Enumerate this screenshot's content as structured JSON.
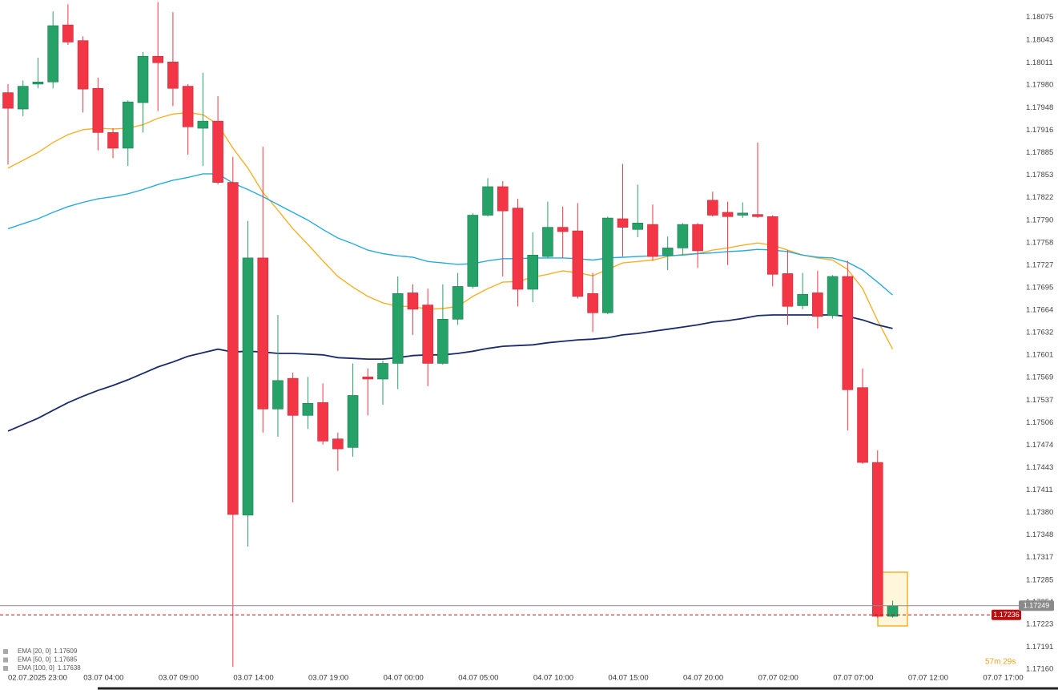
{
  "chart_data": {
    "type": "candlestick",
    "categories": [
      null,
      "02.07.2025 23:00",
      null,
      null,
      null,
      null,
      "03.07 04:00",
      null,
      null,
      null,
      null,
      "03.07 09:00",
      null,
      null,
      null,
      null,
      "03.07 14:00",
      null,
      null,
      null,
      null,
      "03.07 19:00",
      null,
      null,
      null,
      null,
      "04.07 00:00",
      null,
      null,
      null,
      null,
      "04.07 05:00",
      null,
      null,
      null,
      null,
      "04.07 10:00",
      null,
      null,
      null,
      null,
      "04.07 15:00",
      null,
      null,
      null,
      null,
      "04.07 20:00",
      null,
      null,
      null,
      null,
      "07.07 02:00",
      null,
      null,
      null,
      null,
      "07.07 07:00",
      null,
      null,
      null,
      null,
      "07.07 12:00",
      null,
      null,
      null,
      null,
      "07.07 17:00"
    ],
    "open": [
      1.17969,
      1.17946,
      1.17981,
      1.17984,
      1.18064,
      1.18042,
      1.17975,
      1.17913,
      1.17891,
      1.17955,
      1.1802,
      1.18012,
      1.17978,
      1.17919,
      1.17929,
      1.17843,
      1.17376,
      1.17737,
      1.17525,
      1.17568,
      1.17516,
      1.17534,
      1.17483,
      1.17471,
      1.1757,
      1.17567,
      1.17589,
      1.17688,
      1.17671,
      1.17589,
      1.17651,
      1.17697,
      1.17797,
      1.17837,
      1.17807,
      1.17693,
      1.17739,
      1.1778,
      1.17775,
      1.17687,
      1.1766,
      1.17792,
      1.17777,
      1.17784,
      1.17741,
      1.17751,
      1.17784,
      1.17818,
      1.17801,
      1.17797,
      1.17798,
      1.17795,
      1.17715,
      1.1767,
      1.17688,
      1.17656,
      1.17711,
      1.17555,
      1.1745,
      1.17234,
      null,
      null,
      null,
      null,
      null,
      null,
      null
    ],
    "high": [
      1.17981,
      1.17986,
      1.18018,
      1.18083,
      1.18093,
      1.18048,
      1.1799,
      1.17919,
      1.17958,
      1.18026,
      1.18096,
      1.18082,
      1.17981,
      1.17997,
      1.17964,
      1.17879,
      1.17789,
      1.17893,
      1.17657,
      1.17576,
      1.1757,
      1.17561,
      1.17492,
      1.17589,
      1.17582,
      1.17593,
      1.17711,
      1.177,
      1.17694,
      1.177,
      1.17716,
      1.178,
      1.17849,
      1.17845,
      1.1782,
      1.17773,
      1.17816,
      1.17809,
      1.17814,
      1.17716,
      1.17795,
      1.17869,
      1.1784,
      1.17812,
      1.17767,
      1.17786,
      1.17786,
      1.1783,
      1.17816,
      1.17815,
      1.17899,
      1.17797,
      1.17748,
      1.17716,
      1.17719,
      1.17713,
      1.17733,
      1.17582,
      1.17467,
      1.17256,
      null,
      null,
      null,
      null,
      null,
      null,
      null
    ],
    "low": [
      1.17868,
      1.17936,
      1.17975,
      1.17975,
      1.18036,
      1.17941,
      1.17888,
      1.17877,
      1.17866,
      1.17913,
      1.17943,
      1.1795,
      1.17882,
      1.17866,
      1.1784,
      1.17163,
      1.17332,
      1.17492,
      1.17486,
      1.17394,
      1.17497,
      1.17475,
      1.17438,
      1.17458,
      1.17516,
      1.17531,
      1.17553,
      1.17629,
      1.17557,
      1.17587,
      1.17643,
      1.17694,
      1.17795,
      1.17711,
      1.17669,
      1.17675,
      1.17737,
      1.17737,
      1.1768,
      1.17633,
      1.17658,
      1.17739,
      1.17766,
      1.17733,
      1.1772,
      1.17741,
      1.17723,
      1.17795,
      1.17727,
      1.17793,
      1.17793,
      1.17697,
      1.17643,
      1.17665,
      1.17638,
      1.17652,
      1.17495,
      1.17448,
      1.17232,
      1.17232,
      null,
      null,
      null,
      null,
      null,
      null,
      null
    ],
    "close": [
      1.17947,
      1.17978,
      1.17984,
      1.18063,
      1.1804,
      1.17974,
      1.17913,
      1.17891,
      1.17956,
      1.1802,
      1.18011,
      1.17975,
      1.17921,
      1.17929,
      1.17843,
      1.17377,
      1.17737,
      1.17525,
      1.17565,
      1.17516,
      1.17533,
      1.1748,
      1.17469,
      1.17544,
      1.17567,
      1.17589,
      1.17687,
      1.17665,
      1.17589,
      1.17651,
      1.17697,
      1.17797,
      1.17837,
      1.17803,
      1.17693,
      1.17741,
      1.1778,
      1.17774,
      1.17683,
      1.1766,
      1.17793,
      1.1778,
      1.17786,
      1.17739,
      1.17751,
      1.17784,
      1.17747,
      1.17797,
      1.17795,
      1.178,
      1.17795,
      1.17714,
      1.17669,
      1.17686,
      1.17655,
      1.17711,
      1.17552,
      1.1745,
      1.17234,
      1.17249,
      null,
      null,
      null,
      null,
      null,
      null,
      null
    ],
    "up_color": "#26a269",
    "down_color": "#f23645",
    "series": [
      {
        "name": "EMA [20, 0]",
        "color": "#f6b026",
        "values": [
          1.17863,
          1.17874,
          1.17885,
          1.17899,
          1.1791,
          1.17917,
          1.17919,
          1.17918,
          1.17919,
          1.17924,
          1.17933,
          1.17939,
          1.17941,
          1.17938,
          1.17924,
          1.17891,
          1.17863,
          1.17829,
          1.17804,
          1.17778,
          1.17756,
          1.17733,
          1.17711,
          1.17696,
          1.17683,
          1.17674,
          1.17669,
          1.17669,
          1.17665,
          1.17666,
          1.17669,
          1.17683,
          1.17694,
          1.17703,
          1.17704,
          1.1771,
          1.17714,
          1.17719,
          1.17716,
          1.17712,
          1.17721,
          1.1773,
          1.17732,
          1.17734,
          1.17739,
          1.17742,
          1.17743,
          1.17748,
          1.17751,
          1.17755,
          1.17758,
          1.17755,
          1.17748,
          1.17741,
          1.17737,
          1.17734,
          1.17721,
          1.17694,
          1.17649,
          1.17609,
          null,
          null,
          null,
          null,
          null,
          null,
          null
        ]
      },
      {
        "name": "EMA [50, 0]",
        "color": "#27aae1",
        "values": [
          1.17778,
          1.17785,
          1.17792,
          1.17801,
          1.17809,
          1.17815,
          1.1782,
          1.17823,
          1.17827,
          1.17833,
          1.1784,
          1.17846,
          1.1785,
          1.17855,
          1.17855,
          1.17842,
          1.17833,
          1.17823,
          1.17812,
          1.17801,
          1.1779,
          1.17777,
          1.17765,
          1.17757,
          1.17748,
          1.17743,
          1.1774,
          1.17738,
          1.17732,
          1.1773,
          1.17728,
          1.17729,
          1.17733,
          1.17736,
          1.17736,
          1.17737,
          1.17737,
          1.17737,
          1.17736,
          1.17734,
          1.17737,
          1.17738,
          1.17739,
          1.1774,
          1.1774,
          1.17741,
          1.17743,
          1.17744,
          1.17746,
          1.17747,
          1.17749,
          1.17748,
          1.17746,
          1.17741,
          1.17738,
          1.17737,
          1.17731,
          1.1772,
          1.17703,
          1.17685,
          null,
          null,
          null,
          null,
          null,
          null,
          null
        ]
      },
      {
        "name": "EMA [100, 0]",
        "color": "#1b2a6b",
        "values": [
          1.17494,
          1.17503,
          1.17512,
          1.17523,
          1.17534,
          1.17543,
          1.17551,
          1.17558,
          1.17566,
          1.17575,
          1.17584,
          1.17591,
          1.17599,
          1.17604,
          1.17609,
          1.17605,
          1.17606,
          1.17605,
          1.17603,
          1.17603,
          1.17602,
          1.17601,
          1.17597,
          1.17596,
          1.17595,
          1.17595,
          1.17597,
          1.176,
          1.17601,
          1.17601,
          1.17603,
          1.17606,
          1.1761,
          1.17613,
          1.17614,
          1.17615,
          1.17618,
          1.1762,
          1.17622,
          1.17623,
          1.17625,
          1.17629,
          1.17631,
          1.17634,
          1.17637,
          1.1764,
          1.17643,
          1.17647,
          1.17649,
          1.17652,
          1.17656,
          1.17657,
          1.17657,
          1.17657,
          1.17657,
          1.17657,
          1.17655,
          1.1765,
          1.17643,
          1.17638,
          null,
          null,
          null,
          null,
          null,
          null,
          null
        ]
      }
    ],
    "last_price": 1.17249,
    "last_price_color": "#8a8a8a",
    "ask_price": 1.17236,
    "ask_price_color": "#b50f0f",
    "countdown": "57m 29s",
    "ylim": [
      1.17134,
      1.18099
    ],
    "yticks": [
      1.18075,
      1.18043,
      1.18011,
      {
        "value": 1.1798,
        "label": "1.17980"
      },
      1.17948,
      1.17916,
      1.17885,
      1.17853,
      1.17822,
      {
        "value": 1.1779,
        "label": "1.17790"
      },
      1.17758,
      1.17727,
      1.17695,
      1.17664,
      1.17632,
      1.17601,
      1.17569,
      1.17537,
      1.17506,
      1.17474,
      1.17443,
      1.17411,
      {
        "value": 1.1738,
        "label": "1.17380"
      },
      1.17348,
      1.17317,
      1.17285,
      1.17254,
      1.17223,
      1.17191,
      {
        "value": 1.1716,
        "label": "1.17160"
      }
    ]
  }
}
